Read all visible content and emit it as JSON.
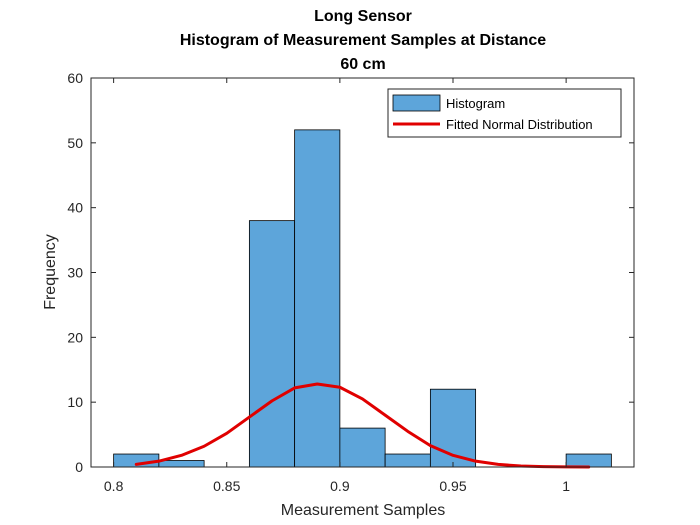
{
  "chart_data": {
    "type": "bar",
    "title_lines": [
      "Long Sensor",
      "Histogram of Measurement Samples at Distance",
      "60 cm"
    ],
    "xlabel": "Measurement Samples",
    "ylabel": "Frequency",
    "xlim": [
      0.79,
      1.03
    ],
    "ylim": [
      0,
      60
    ],
    "x_ticks": [
      0.8,
      0.85,
      0.9,
      0.95,
      1
    ],
    "x_tick_labels": [
      "0.8",
      "0.85",
      "0.9",
      "0.95",
      "1"
    ],
    "y_ticks": [
      0,
      10,
      20,
      30,
      40,
      50,
      60
    ],
    "y_tick_labels": [
      "0",
      "10",
      "20",
      "30",
      "40",
      "50",
      "60"
    ],
    "grid": false,
    "legend_position": "top-right",
    "bin_width": 0.02,
    "series": [
      {
        "name": "Histogram",
        "kind": "histogram",
        "color": "#5DA5DA",
        "edge_color": "#000000",
        "bins": [
          {
            "start": 0.8,
            "end": 0.82,
            "value": 2
          },
          {
            "start": 0.82,
            "end": 0.84,
            "value": 1
          },
          {
            "start": 0.84,
            "end": 0.86,
            "value": 0
          },
          {
            "start": 0.86,
            "end": 0.88,
            "value": 38
          },
          {
            "start": 0.88,
            "end": 0.9,
            "value": 52
          },
          {
            "start": 0.9,
            "end": 0.92,
            "value": 6
          },
          {
            "start": 0.92,
            "end": 0.94,
            "value": 2
          },
          {
            "start": 0.94,
            "end": 0.96,
            "value": 12
          },
          {
            "start": 0.96,
            "end": 0.98,
            "value": 0
          },
          {
            "start": 0.98,
            "end": 1.0,
            "value": 0
          },
          {
            "start": 1.0,
            "end": 1.02,
            "value": 2
          }
        ]
      },
      {
        "name": "Fitted Normal Distribution",
        "kind": "line",
        "color": "#E00000",
        "x": [
          0.81,
          0.82,
          0.83,
          0.84,
          0.85,
          0.86,
          0.87,
          0.88,
          0.89,
          0.9,
          0.91,
          0.92,
          0.93,
          0.94,
          0.95,
          0.96,
          0.97,
          0.98,
          0.99,
          1.0,
          1.01
        ],
        "y": [
          0.4,
          0.9,
          1.8,
          3.2,
          5.2,
          7.7,
          10.2,
          12.2,
          12.8,
          12.3,
          10.5,
          8.0,
          5.5,
          3.3,
          1.8,
          0.9,
          0.4,
          0.15,
          0.05,
          0.02,
          0.01
        ]
      }
    ]
  }
}
